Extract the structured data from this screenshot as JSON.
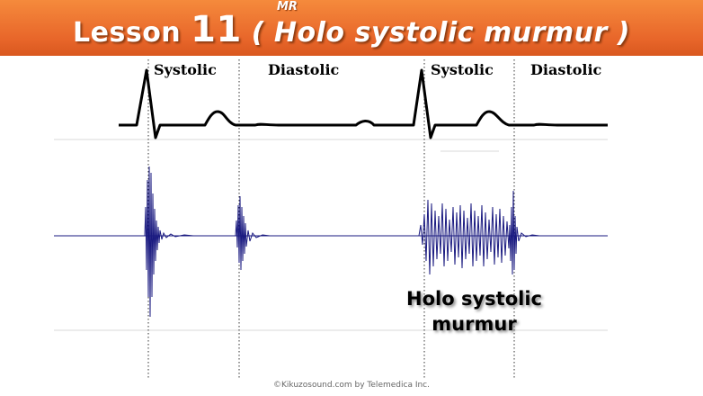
{
  "title": {
    "lesson": "Lesson",
    "number": "11",
    "topic_open": "( Holo systolic murmur )",
    "superscript": "MR"
  },
  "phases": {
    "systolic_1": "Systolic",
    "diastolic_1": "Diastolic",
    "systolic_2": "Systolic",
    "diastolic_2": "Diastolic"
  },
  "annotation": {
    "line1": "Holo systolic",
    "line2": "murmur"
  },
  "copyright": "©Kikuzosound.com by Telemedica Inc.",
  "colors": {
    "title_bar": "#e8662a",
    "title_text": "#ffffff",
    "ecg_trace": "#000000",
    "phonocardiogram": "#1a1a80"
  }
}
